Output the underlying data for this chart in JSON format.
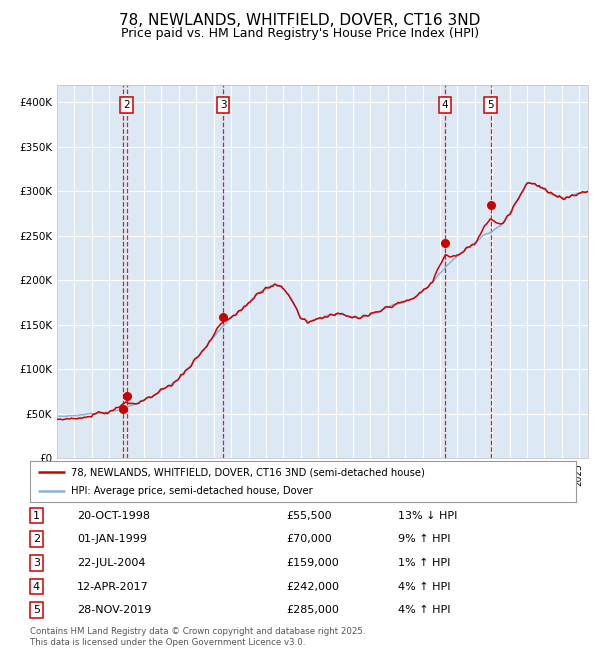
{
  "title": "78, NEWLANDS, WHITFIELD, DOVER, CT16 3ND",
  "subtitle": "Price paid vs. HM Land Registry's House Price Index (HPI)",
  "title_fontsize": 11,
  "subtitle_fontsize": 9,
  "xlim_start": 1995.0,
  "xlim_end": 2025.5,
  "ylim_min": 0,
  "ylim_max": 420000,
  "yticks": [
    0,
    50000,
    100000,
    150000,
    200000,
    250000,
    300000,
    350000,
    400000
  ],
  "ytick_labels": [
    "£0",
    "£50K",
    "£100K",
    "£150K",
    "£200K",
    "£250K",
    "£300K",
    "£350K",
    "£400K"
  ],
  "bg_color": "#dce9f5",
  "line_color_red": "#cc0000",
  "line_color_blue": "#8ab4d4",
  "grid_color": "#ffffff",
  "dashed_line_color": "#cc0000",
  "legend_label_red": "78, NEWLANDS, WHITFIELD, DOVER, CT16 3ND (semi-detached house)",
  "legend_label_blue": "HPI: Average price, semi-detached house, Dover",
  "transactions": [
    {
      "num": 1,
      "date_x": 1998.79,
      "price": 55500,
      "show_box": false
    },
    {
      "num": 2,
      "date_x": 1999.0,
      "price": 70000,
      "show_box": true
    },
    {
      "num": 3,
      "date_x": 2004.55,
      "price": 159000,
      "show_box": true
    },
    {
      "num": 4,
      "date_x": 2017.28,
      "price": 242000,
      "show_box": true
    },
    {
      "num": 5,
      "date_x": 2019.91,
      "price": 285000,
      "show_box": true
    }
  ],
  "table_rows": [
    {
      "num": 1,
      "date": "20-OCT-1998",
      "price": "£55,500",
      "hpi": "13% ↓ HPI"
    },
    {
      "num": 2,
      "date": "01-JAN-1999",
      "price": "£70,000",
      "hpi": "9% ↑ HPI"
    },
    {
      "num": 3,
      "date": "22-JUL-2004",
      "price": "£159,000",
      "hpi": "1% ↑ HPI"
    },
    {
      "num": 4,
      "date": "12-APR-2017",
      "price": "£242,000",
      "hpi": "4% ↑ HPI"
    },
    {
      "num": 5,
      "date": "28-NOV-2019",
      "price": "£285,000",
      "hpi": "4% ↑ HPI"
    }
  ],
  "footer": "Contains HM Land Registry data © Crown copyright and database right 2025.\nThis data is licensed under the Open Government Licence v3.0."
}
